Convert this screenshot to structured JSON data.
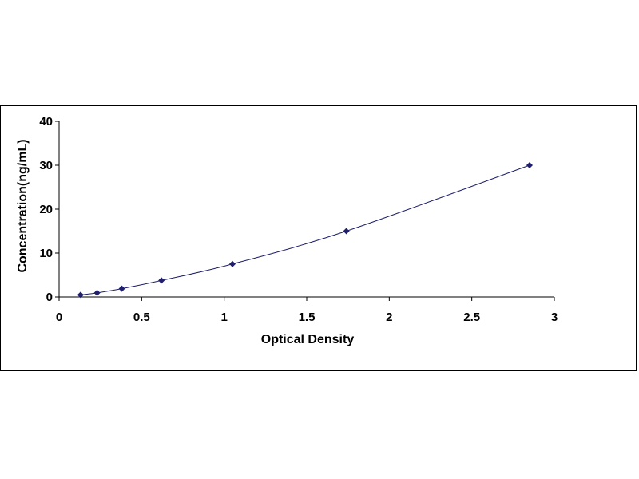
{
  "chart_data": {
    "type": "scatter",
    "title": "",
    "xlabel": "Optical Density",
    "ylabel": "Concentration(ng/mL)",
    "xlim": [
      0,
      3
    ],
    "ylim": [
      0,
      40
    ],
    "x_ticks": [
      "0",
      "0.5",
      "1",
      "1.5",
      "2",
      "2.5",
      "3"
    ],
    "y_ticks": [
      "0",
      "10",
      "20",
      "30",
      "40"
    ],
    "grid": false,
    "legend": "none",
    "marker": "diamond",
    "fit_line": "smooth curve through points",
    "series": [
      {
        "color": "#1f1f6b",
        "points": [
          {
            "x": 0.13,
            "y": 0.47
          },
          {
            "x": 0.23,
            "y": 0.94
          },
          {
            "x": 0.38,
            "y": 1.88
          },
          {
            "x": 0.62,
            "y": 3.75
          },
          {
            "x": 1.05,
            "y": 7.5
          },
          {
            "x": 1.74,
            "y": 15
          },
          {
            "x": 2.85,
            "y": 30
          }
        ]
      }
    ]
  }
}
